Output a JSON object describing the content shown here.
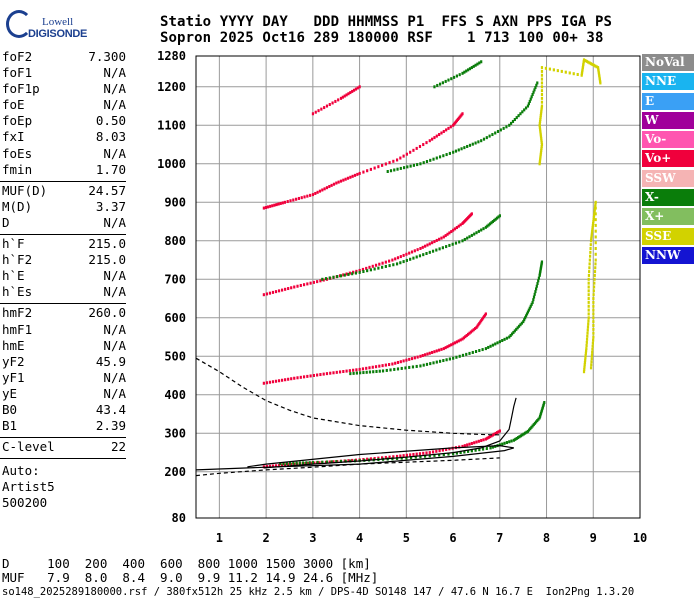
{
  "logo": {
    "top": "Lowell",
    "bottom": "DIGISONDE"
  },
  "header": {
    "line1": "Statio YYYY DAY   DDD HHMMSS P1  FFS S AXN PPS IGA PS",
    "line2": "Sopron 2025 Oct16 289 180000 RSF    1 713 100 00+ 38"
  },
  "params": [
    [
      {
        "name": "foF2",
        "value": "7.300"
      },
      {
        "name": "foF1",
        "value": "N/A"
      },
      {
        "name": "foF1p",
        "value": "N/A"
      },
      {
        "name": "foE",
        "value": "N/A"
      },
      {
        "name": "foEp",
        "value": "0.50"
      },
      {
        "name": "fxI",
        "value": "8.03"
      },
      {
        "name": "foEs",
        "value": "N/A"
      },
      {
        "name": "fmin",
        "value": "1.70"
      }
    ],
    [
      {
        "name": "MUF(D)",
        "value": "24.57"
      },
      {
        "name": "M(D)",
        "value": "3.37"
      },
      {
        "name": "D",
        "value": "N/A"
      }
    ],
    [
      {
        "name": "h`F",
        "value": "215.0"
      },
      {
        "name": "h`F2",
        "value": "215.0"
      },
      {
        "name": "h`E",
        "value": "N/A"
      },
      {
        "name": "h`Es",
        "value": "N/A"
      }
    ],
    [
      {
        "name": "hmF2",
        "value": "260.0"
      },
      {
        "name": "hmF1",
        "value": "N/A"
      },
      {
        "name": "hmE",
        "value": "N/A"
      },
      {
        "name": "yF2",
        "value": "45.9"
      },
      {
        "name": "yF1",
        "value": "N/A"
      },
      {
        "name": "yE",
        "value": "N/A"
      },
      {
        "name": "B0",
        "value": "43.4"
      },
      {
        "name": "B1",
        "value": "2.39"
      }
    ],
    [
      {
        "name": "C-level",
        "value": "22"
      }
    ]
  ],
  "auto": {
    "line1": "Auto:",
    "line2": "Artist5",
    "line3": "500200"
  },
  "legend": [
    {
      "label": "NoVal",
      "color": "#8c8c8c"
    },
    {
      "label": "NNE",
      "color": "#19b4f0"
    },
    {
      "label": "E",
      "color": "#3aa0f5"
    },
    {
      "label": "W",
      "color": "#a0009a"
    },
    {
      "label": "Vo-",
      "color": "#ff55b0"
    },
    {
      "label": "Vo+",
      "color": "#f0003c"
    },
    {
      "label": "SSW",
      "color": "#f5b4b4"
    },
    {
      "label": "X-",
      "color": "#0a7d0a"
    },
    {
      "label": "X+",
      "color": "#82be5f"
    },
    {
      "label": "SSE",
      "color": "#d2d200"
    },
    {
      "label": "NNW",
      "color": "#1414d2"
    }
  ],
  "footer": {
    "d_row": "D     100  200  400  600  800 1000 1500 3000 [km]",
    "muf_row": "MUF   7.9  8.0  8.4  9.0  9.9 11.2 14.9 24.6 [MHz]",
    "info": "so148_2025289180000.rsf / 380fx512h 25 kHz 2.5 km / DPS-4D SO148 147 / 47.6 N 16.7 E  Ion2Png 1.3.20"
  },
  "chart_data": {
    "type": "scatter",
    "xlim": [
      0.5,
      10
    ],
    "ylim": [
      80,
      1280
    ],
    "xticks": [
      1,
      2,
      3,
      4,
      5,
      6,
      7,
      8,
      9,
      10
    ],
    "yticks": [
      80,
      200,
      300,
      400,
      500,
      600,
      700,
      800,
      900,
      1000,
      1100,
      1200,
      1280
    ],
    "grid": true,
    "traces": [
      {
        "name": "Vo+",
        "color": "#f0003c",
        "points": [
          [
            1.95,
            213
          ],
          [
            2.6,
            220
          ],
          [
            3.2,
            224
          ],
          [
            4.0,
            231
          ],
          [
            4.8,
            240
          ],
          [
            5.5,
            250
          ],
          [
            6.2,
            266
          ],
          [
            6.7,
            285
          ],
          [
            7.0,
            306
          ]
        ]
      },
      {
        "name": "X-",
        "color": "#0a7d0a",
        "points": [
          [
            2.3,
            221
          ],
          [
            3.0,
            224
          ],
          [
            4.0,
            229
          ],
          [
            5.0,
            236
          ],
          [
            6.0,
            247
          ],
          [
            6.8,
            262
          ],
          [
            7.3,
            282
          ],
          [
            7.6,
            305
          ],
          [
            7.85,
            340
          ],
          [
            7.95,
            380
          ]
        ]
      },
      {
        "name": "Vo+",
        "color": "#f0003c",
        "points": [
          [
            1.95,
            430
          ],
          [
            2.6,
            443
          ],
          [
            3.3,
            455
          ],
          [
            4.0,
            466
          ],
          [
            4.7,
            480
          ],
          [
            5.3,
            500
          ],
          [
            5.8,
            520
          ],
          [
            6.2,
            545
          ],
          [
            6.5,
            575
          ],
          [
            6.7,
            610
          ]
        ]
      },
      {
        "name": "X-",
        "color": "#0a7d0a",
        "points": [
          [
            3.8,
            455
          ],
          [
            4.5,
            462
          ],
          [
            5.3,
            475
          ],
          [
            6.0,
            495
          ],
          [
            6.7,
            520
          ],
          [
            7.2,
            550
          ],
          [
            7.5,
            590
          ],
          [
            7.7,
            640
          ],
          [
            7.85,
            710
          ],
          [
            7.9,
            745
          ]
        ]
      },
      {
        "name": "Vo+",
        "color": "#f0003c",
        "points": [
          [
            1.95,
            660
          ],
          [
            2.6,
            680
          ],
          [
            3.3,
            700
          ],
          [
            4.0,
            723
          ],
          [
            4.7,
            750
          ],
          [
            5.3,
            780
          ],
          [
            5.8,
            810
          ],
          [
            6.2,
            845
          ],
          [
            6.4,
            870
          ]
        ]
      },
      {
        "name": "X-",
        "color": "#0a7d0a",
        "points": [
          [
            3.2,
            700
          ],
          [
            4.0,
            718
          ],
          [
            4.8,
            740
          ],
          [
            5.5,
            770
          ],
          [
            6.2,
            800
          ],
          [
            6.7,
            835
          ],
          [
            7.0,
            865
          ]
        ]
      },
      {
        "name": "Vo+",
        "color": "#f0003c",
        "points": [
          [
            1.95,
            885
          ],
          [
            2.4,
            900
          ],
          [
            3.0,
            920
          ],
          [
            3.5,
            950
          ],
          [
            4.0,
            975
          ],
          [
            4.8,
            1010
          ],
          [
            5.5,
            1060
          ],
          [
            6.0,
            1100
          ],
          [
            6.2,
            1130
          ]
        ]
      },
      {
        "name": "X-",
        "color": "#0a7d0a",
        "points": [
          [
            4.6,
            980
          ],
          [
            5.3,
            1000
          ],
          [
            6.0,
            1030
          ],
          [
            6.6,
            1060
          ],
          [
            7.2,
            1100
          ],
          [
            7.6,
            1150
          ],
          [
            7.8,
            1210
          ]
        ]
      },
      {
        "name": "Vo+",
        "color": "#f0003c",
        "points": [
          [
            3.0,
            1130
          ],
          [
            3.6,
            1170
          ],
          [
            4.0,
            1200
          ]
        ]
      },
      {
        "name": "X-",
        "color": "#0a7d0a",
        "points": [
          [
            5.6,
            1200
          ],
          [
            6.2,
            1235
          ],
          [
            6.6,
            1265
          ]
        ]
      },
      {
        "name": "SSE",
        "color": "#d2d200",
        "points": [
          [
            8.8,
            460
          ],
          [
            8.85,
            520
          ],
          [
            8.9,
            600
          ],
          [
            8.9,
            700
          ],
          [
            8.95,
            800
          ],
          [
            9.0,
            850
          ],
          [
            9.05,
            900
          ],
          [
            9.05,
            750
          ],
          [
            9.0,
            650
          ],
          [
            9.0,
            550
          ],
          [
            8.95,
            470
          ]
        ]
      },
      {
        "name": "SSE",
        "color": "#d2d200",
        "points": [
          [
            7.85,
            1000
          ],
          [
            7.9,
            1050
          ],
          [
            7.85,
            1100
          ],
          [
            7.9,
            1150
          ],
          [
            7.9,
            1250
          ],
          [
            8.75,
            1230
          ],
          [
            8.8,
            1270
          ],
          [
            9.1,
            1250
          ],
          [
            9.15,
            1210
          ]
        ]
      }
    ],
    "profile_solid": [
      [
        1.95,
        210
      ],
      [
        3.0,
        220
      ],
      [
        4.0,
        228
      ],
      [
        5.0,
        238
      ],
      [
        6.0,
        250
      ],
      [
        6.6,
        262
      ],
      [
        7.0,
        280
      ],
      [
        7.2,
        310
      ],
      [
        7.25,
        340
      ],
      [
        7.3,
        370
      ],
      [
        7.35,
        392
      ]
    ],
    "profile_solid_lower": [
      [
        0.5,
        205
      ],
      [
        2.0,
        212
      ],
      [
        4.0,
        220
      ],
      [
        6.0,
        240
      ],
      [
        7.1,
        255
      ],
      [
        7.3,
        262
      ],
      [
        7.0,
        268
      ],
      [
        6.0,
        262
      ],
      [
        4.0,
        245
      ],
      [
        2.0,
        220
      ],
      [
        1.6,
        213
      ]
    ],
    "profile_dashed": [
      [
        0.5,
        495
      ],
      [
        1.0,
        460
      ],
      [
        1.5,
        420
      ],
      [
        2.0,
        385
      ],
      [
        2.5,
        360
      ],
      [
        3.0,
        340
      ],
      [
        4.0,
        320
      ],
      [
        5.0,
        308
      ],
      [
        6.0,
        300
      ],
      [
        6.8,
        296
      ],
      [
        7.0,
        296
      ]
    ],
    "profile_dashed_lower": [
      [
        0.5,
        190
      ],
      [
        1.0,
        196
      ],
      [
        2.0,
        205
      ],
      [
        3.0,
        212
      ],
      [
        4.0,
        220
      ],
      [
        5.0,
        225
      ],
      [
        6.0,
        230
      ],
      [
        7.0,
        236
      ]
    ]
  }
}
